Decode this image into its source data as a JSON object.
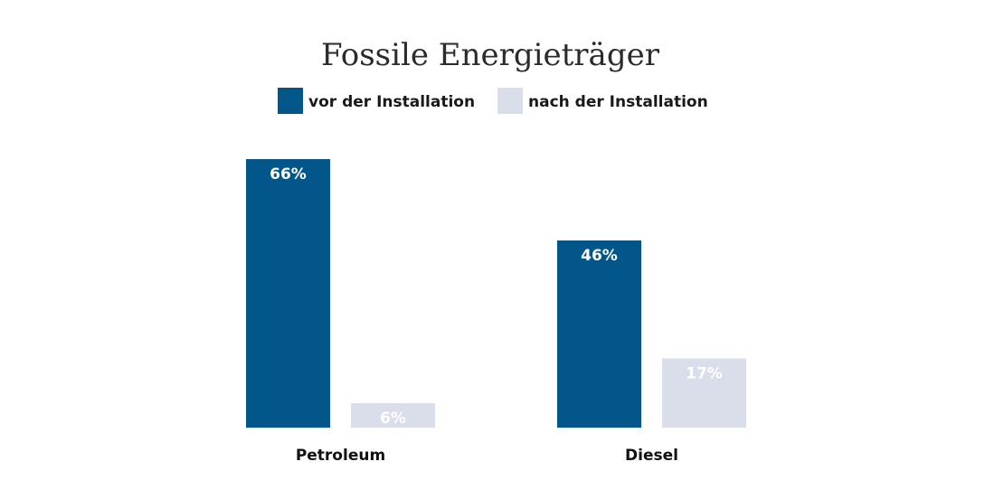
{
  "chart_data": {
    "type": "bar",
    "title": "Fossile Energieträger",
    "categories": [
      "Petroleum",
      "Diesel"
    ],
    "series": [
      {
        "name": "vor der Installation",
        "values": [
          66,
          46
        ],
        "labels": [
          "66%",
          "46%"
        ],
        "color": "#02568a"
      },
      {
        "name": "nach der Installation",
        "values": [
          6,
          17
        ],
        "labels": [
          "6%",
          "17%"
        ],
        "color": "#dadeeb"
      }
    ],
    "xlabel": "",
    "ylabel": "",
    "ylim": [
      0,
      100
    ],
    "unit": "%",
    "grid": false,
    "legend": "top-center"
  }
}
